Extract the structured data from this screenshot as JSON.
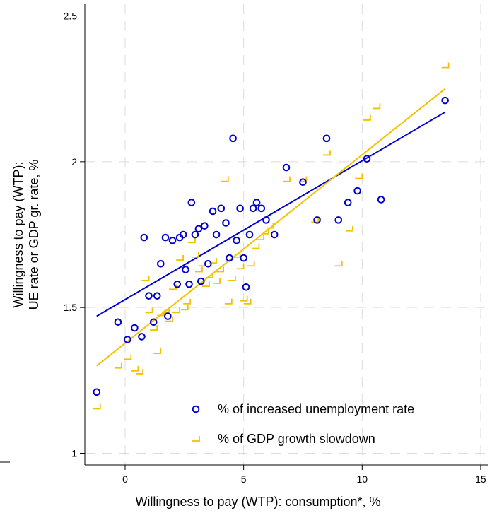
{
  "chart_data": {
    "type": "scatter",
    "title": "",
    "xlabel": "Willingness to pay (WTP): consumption*, %",
    "ylabel_lines": [
      "Willingness to pay (WTP):",
      "UE rate or GDP gr. rate, %"
    ],
    "xlim": [
      -1.7,
      15.3
    ],
    "ylim": [
      0.96,
      2.54
    ],
    "xticks": [
      0,
      5,
      10,
      15
    ],
    "xtick_labels": [
      "0",
      "5",
      "10",
      "15"
    ],
    "yticks": [
      1,
      1.5,
      2,
      2.5
    ],
    "ytick_labels": [
      "1",
      "1.5",
      "2",
      "2.5"
    ],
    "grid": true,
    "legend_position": "bottom-right",
    "series": [
      {
        "name": "% of increased unemployment rate",
        "marker": "circle",
        "color": "#0000cc",
        "points": [
          [
            -1.2,
            1.21
          ],
          [
            -0.3,
            1.45
          ],
          [
            0.1,
            1.39
          ],
          [
            0.4,
            1.43
          ],
          [
            0.7,
            1.4
          ],
          [
            0.8,
            1.74
          ],
          [
            1.0,
            1.54
          ],
          [
            1.2,
            1.45
          ],
          [
            1.35,
            1.54
          ],
          [
            1.5,
            1.65
          ],
          [
            1.7,
            1.74
          ],
          [
            1.8,
            1.47
          ],
          [
            2.0,
            1.73
          ],
          [
            2.2,
            1.58
          ],
          [
            2.3,
            1.74
          ],
          [
            2.45,
            1.75
          ],
          [
            2.55,
            1.63
          ],
          [
            2.7,
            1.58
          ],
          [
            2.8,
            1.86
          ],
          [
            2.95,
            1.75
          ],
          [
            3.1,
            1.77
          ],
          [
            3.2,
            1.59
          ],
          [
            3.35,
            1.78
          ],
          [
            3.5,
            1.65
          ],
          [
            3.7,
            1.83
          ],
          [
            3.85,
            1.75
          ],
          [
            4.05,
            1.84
          ],
          [
            4.25,
            1.79
          ],
          [
            4.4,
            1.67
          ],
          [
            4.55,
            2.08
          ],
          [
            4.7,
            1.73
          ],
          [
            4.85,
            1.84
          ],
          [
            5.0,
            1.67
          ],
          [
            5.1,
            1.57
          ],
          [
            5.25,
            1.75
          ],
          [
            5.4,
            1.84
          ],
          [
            5.55,
            1.86
          ],
          [
            5.75,
            1.84
          ],
          [
            5.95,
            1.8
          ],
          [
            6.3,
            1.75
          ],
          [
            6.8,
            1.98
          ],
          [
            7.5,
            1.93
          ],
          [
            8.1,
            1.8
          ],
          [
            8.5,
            2.08
          ],
          [
            9.0,
            1.8
          ],
          [
            9.4,
            1.86
          ],
          [
            9.8,
            1.9
          ],
          [
            10.2,
            2.01
          ],
          [
            10.8,
            1.87
          ],
          [
            13.5,
            2.21
          ]
        ],
        "fit": {
          "x": [
            -1.2,
            13.5
          ],
          "y": [
            1.47,
            2.17
          ]
        }
      },
      {
        "name": "% of GDP growth slowdown",
        "marker": "chevron",
        "color": "#f2c200",
        "points": [
          [
            -1.2,
            1.16
          ],
          [
            -0.3,
            1.3
          ],
          [
            0.1,
            1.33
          ],
          [
            0.4,
            1.29
          ],
          [
            0.6,
            1.28
          ],
          [
            0.85,
            1.6
          ],
          [
            1.0,
            1.49
          ],
          [
            1.2,
            1.43
          ],
          [
            1.35,
            1.35
          ],
          [
            1.5,
            1.48
          ],
          [
            1.7,
            1.49
          ],
          [
            1.85,
            1.46
          ],
          [
            2.0,
            1.57
          ],
          [
            2.15,
            1.49
          ],
          [
            2.3,
            1.67
          ],
          [
            2.5,
            1.5
          ],
          [
            2.6,
            1.52
          ],
          [
            2.8,
            1.73
          ],
          [
            2.95,
            1.68
          ],
          [
            3.1,
            1.63
          ],
          [
            3.25,
            1.65
          ],
          [
            3.4,
            1.58
          ],
          [
            3.55,
            1.61
          ],
          [
            3.7,
            1.66
          ],
          [
            3.85,
            1.59
          ],
          [
            4.0,
            1.63
          ],
          [
            4.2,
            1.94
          ],
          [
            4.35,
            1.52
          ],
          [
            4.5,
            1.6
          ],
          [
            4.7,
            1.68
          ],
          [
            4.85,
            1.64
          ],
          [
            5.0,
            1.53
          ],
          [
            5.15,
            1.52
          ],
          [
            5.3,
            1.65
          ],
          [
            5.5,
            1.71
          ],
          [
            5.7,
            1.74
          ],
          [
            5.9,
            1.76
          ],
          [
            6.1,
            1.78
          ],
          [
            6.8,
            1.94
          ],
          [
            7.5,
            1.94
          ],
          [
            8.0,
            1.8
          ],
          [
            8.5,
            2.03
          ],
          [
            9.0,
            1.65
          ],
          [
            9.45,
            1.77
          ],
          [
            9.85,
            1.95
          ],
          [
            10.2,
            2.15
          ],
          [
            10.6,
            2.19
          ],
          [
            13.5,
            2.33
          ]
        ],
        "fit": {
          "x": [
            -1.2,
            13.5
          ],
          "y": [
            1.3,
            2.25
          ]
        }
      }
    ]
  }
}
